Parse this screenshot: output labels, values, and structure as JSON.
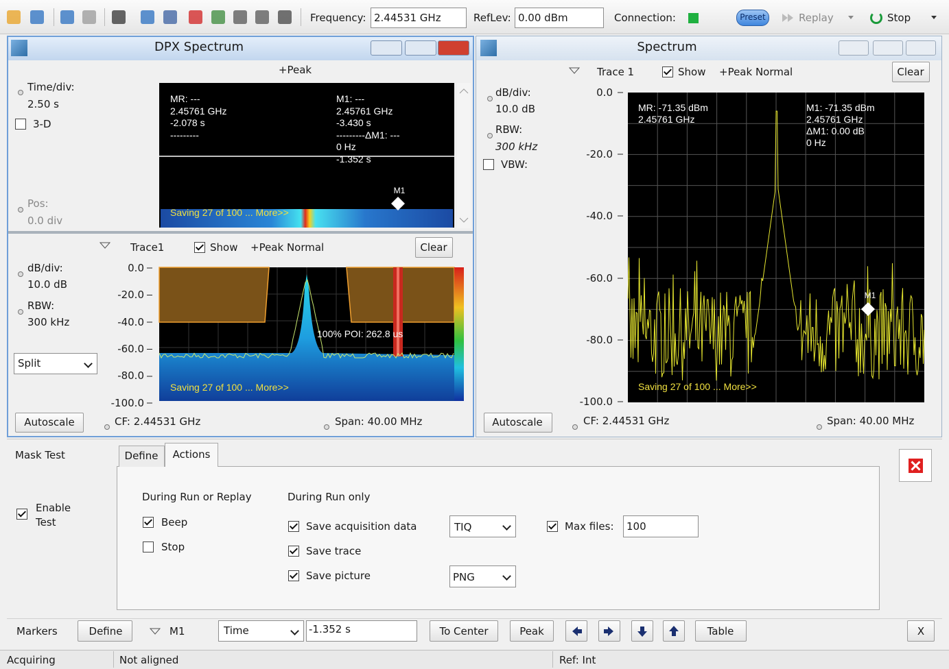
{
  "toolbar": {
    "frequency_label": "Frequency:",
    "frequency": "2.44531 GHz",
    "reflev_label": "RefLev:",
    "reflev": "0.00 dBm",
    "connection_label": "Connection:",
    "preset": "Preset",
    "replay": "Replay",
    "stop": "Stop"
  },
  "dpx": {
    "title": "DPX Spectrum",
    "spectrogram": {
      "trace_mode": "+Peak",
      "time_div_label": "Time/div:",
      "time_div": "2.50 s",
      "three_d": "3-D",
      "pos_label": "Pos:",
      "pos": "0.0 div",
      "mr_readout": [
        "MR: ---",
        "2.45761 GHz",
        "-2.078 s",
        "---------"
      ],
      "m1_readout": [
        "M1: ---",
        "2.45761 GHz",
        "-3.430 s",
        "---------ΔM1: ---",
        "0 Hz",
        "-1.352 s"
      ],
      "marker": "M1",
      "saving": "Saving 27 of 100 ... More>>"
    },
    "spectrum": {
      "trace": "Trace1",
      "show": "Show",
      "trace_mode": "+Peak Normal",
      "clear": "Clear",
      "db_div_label": "dB/div:",
      "db_div": "10.0 dB",
      "rbw_label": "RBW:",
      "rbw": "300 kHz",
      "display": "Split",
      "y_labels": [
        "0.0",
        "-20.0",
        "-40.0",
        "-60.0",
        "-80.0",
        "-100.0"
      ],
      "poi": "100% POI: 262.8 us",
      "saving": "Saving 27 of 100 ... More>>",
      "autoscale": "Autoscale",
      "cf": "CF: 2.44531 GHz",
      "span": "Span: 40.00 MHz"
    }
  },
  "spectrum": {
    "title": "Spectrum",
    "trace": "Trace 1",
    "show": "Show",
    "trace_mode": "+Peak Normal",
    "clear": "Clear",
    "db_div_label": "dB/div:",
    "db_div": "10.0 dB",
    "rbw_label": "RBW:",
    "rbw": "300 kHz",
    "vbw_label": "VBW:",
    "y_labels": [
      "0.0",
      "-20.0",
      "-40.0",
      "-60.0",
      "-80.0",
      "-100.0"
    ],
    "mr_readout": [
      "MR: -71.35 dBm",
      "2.45761 GHz"
    ],
    "m1_readout": [
      "M1: -71.35 dBm",
      "2.45761 GHz",
      "ΔM1: 0.00 dB",
      "0 Hz"
    ],
    "marker": "M1",
    "saving": "Saving 27 of 100 ... More>>",
    "autoscale": "Autoscale",
    "cf": "CF: 2.44531 GHz",
    "span": "Span: 40.00 MHz"
  },
  "mask_test": {
    "title": "Mask Test",
    "tabs": [
      "Define",
      "Actions"
    ],
    "enable": [
      "Enable",
      "Test"
    ],
    "during_run_or_replay": "During Run or Replay",
    "beep": "Beep",
    "stop": "Stop",
    "during_run_only": "During Run only",
    "save_acquisition": "Save acquisition data",
    "acquisition_format": "TIQ",
    "save_trace": "Save trace",
    "save_picture": "Save picture",
    "picture_format": "PNG",
    "max_files_label": "Max files:",
    "max_files": "100"
  },
  "markers": {
    "label": "Markers",
    "define": "Define",
    "marker": "M1",
    "mode": "Time",
    "value": "-1.352 s",
    "to_center": "To Center",
    "peak": "Peak",
    "table": "Table",
    "close": "X"
  },
  "status": {
    "state": "Acquiring",
    "alignment": "Not aligned",
    "reference": "Ref: Int"
  }
}
